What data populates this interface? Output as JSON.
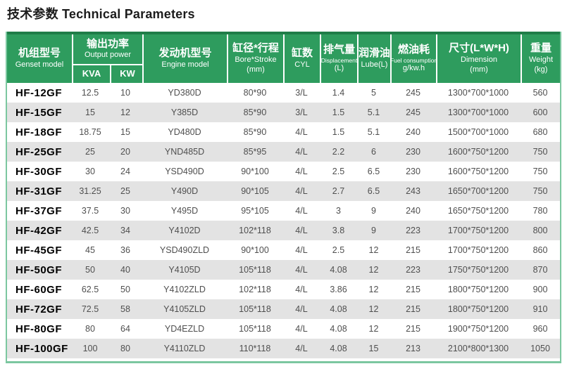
{
  "page": {
    "title": "技术参数 Technical Parameters"
  },
  "colors": {
    "header_green": "#2e9c5e",
    "header_top_strip_green": "#1f7d48",
    "table_border_green": "#7cc7a0",
    "alt_row_gray": "#e3e3e3",
    "data_text": "#4f4f4f"
  },
  "table": {
    "column_keys": [
      "genset_model",
      "kva",
      "kw",
      "engine_model",
      "bore_stroke",
      "cyl",
      "displacement",
      "lube",
      "fuel_consumption",
      "dimension",
      "weight"
    ],
    "headers": {
      "genset_model": {
        "zh": "机组型号",
        "en": "Genset model"
      },
      "output_power": {
        "zh": "输出功率",
        "en": "Output power",
        "sub_kva": "KVA",
        "sub_kw": "KW"
      },
      "engine_model": {
        "zh": "发动机型号",
        "en": "Engine model"
      },
      "bore_stroke": {
        "zh": "缸径*行程",
        "en": "Bore*Stroke",
        "unit": "(mm)"
      },
      "cyl": {
        "zh": "缸数",
        "en": "CYL"
      },
      "displacement": {
        "zh": "排气量",
        "en": "Displacement",
        "unit": "(L)"
      },
      "lube": {
        "zh": "润滑油",
        "en": "Lube(L)"
      },
      "fuel_consumption": {
        "zh": "燃油耗",
        "en": "Fuel consumption",
        "unit": "g/kw.h"
      },
      "dimension": {
        "zh": "尺寸(L*W*H)",
        "en": "Dimension",
        "unit": "(mm)"
      },
      "weight": {
        "zh": "重量",
        "en": "Weight",
        "unit": "(kg)"
      }
    },
    "rows": [
      [
        "HF-12GF",
        "12.5",
        "10",
        "YD380D",
        "80*90",
        "3/L",
        "1.4",
        "5",
        "245",
        "1300*700*1000",
        "560"
      ],
      [
        "HF-15GF",
        "15",
        "12",
        "Y385D",
        "85*90",
        "3/L",
        "1.5",
        "5.1",
        "245",
        "1300*700*1000",
        "600"
      ],
      [
        "HF-18GF",
        "18.75",
        "15",
        "YD480D",
        "85*90",
        "4/L",
        "1.5",
        "5.1",
        "240",
        "1500*700*1000",
        "680"
      ],
      [
        "HF-25GF",
        "25",
        "20",
        "YND485D",
        "85*95",
        "4/L",
        "2.2",
        "6",
        "230",
        "1600*750*1200",
        "750"
      ],
      [
        "HF-30GF",
        "30",
        "24",
        "YSD490D",
        "90*100",
        "4/L",
        "2.5",
        "6.5",
        "230",
        "1600*750*1200",
        "750"
      ],
      [
        "HF-31GF",
        "31.25",
        "25",
        "Y490D",
        "90*105",
        "4/L",
        "2.7",
        "6.5",
        "243",
        "1650*700*1200",
        "750"
      ],
      [
        "HF-37GF",
        "37.5",
        "30",
        "Y495D",
        "95*105",
        "4/L",
        "3",
        "9",
        "240",
        "1650*750*1200",
        "780"
      ],
      [
        "HF-42GF",
        "42.5",
        "34",
        "Y4102D",
        "102*118",
        "4/L",
        "3.8",
        "9",
        "223",
        "1700*750*1200",
        "800"
      ],
      [
        "HF-45GF",
        "45",
        "36",
        "YSD490ZLD",
        "90*100",
        "4/L",
        "2.5",
        "12",
        "215",
        "1700*750*1200",
        "860"
      ],
      [
        "HF-50GF",
        "50",
        "40",
        "Y4105D",
        "105*118",
        "4/L",
        "4.08",
        "12",
        "223",
        "1750*750*1200",
        "870"
      ],
      [
        "HF-60GF",
        "62.5",
        "50",
        "Y4102ZLD",
        "102*118",
        "4/L",
        "3.86",
        "12",
        "215",
        "1800*750*1200",
        "900"
      ],
      [
        "HF-72GF",
        "72.5",
        "58",
        "Y4105ZLD",
        "105*118",
        "4/L",
        "4.08",
        "12",
        "215",
        "1800*750*1200",
        "910"
      ],
      [
        "HF-80GF",
        "80",
        "64",
        "YD4EZLD",
        "105*118",
        "4/L",
        "4.08",
        "12",
        "215",
        "1900*750*1200",
        "960"
      ],
      [
        "HF-100GF",
        "100",
        "80",
        "Y4110ZLD",
        "110*118",
        "4/L",
        "4.08",
        "15",
        "213",
        "2100*800*1300",
        "1050"
      ]
    ]
  }
}
